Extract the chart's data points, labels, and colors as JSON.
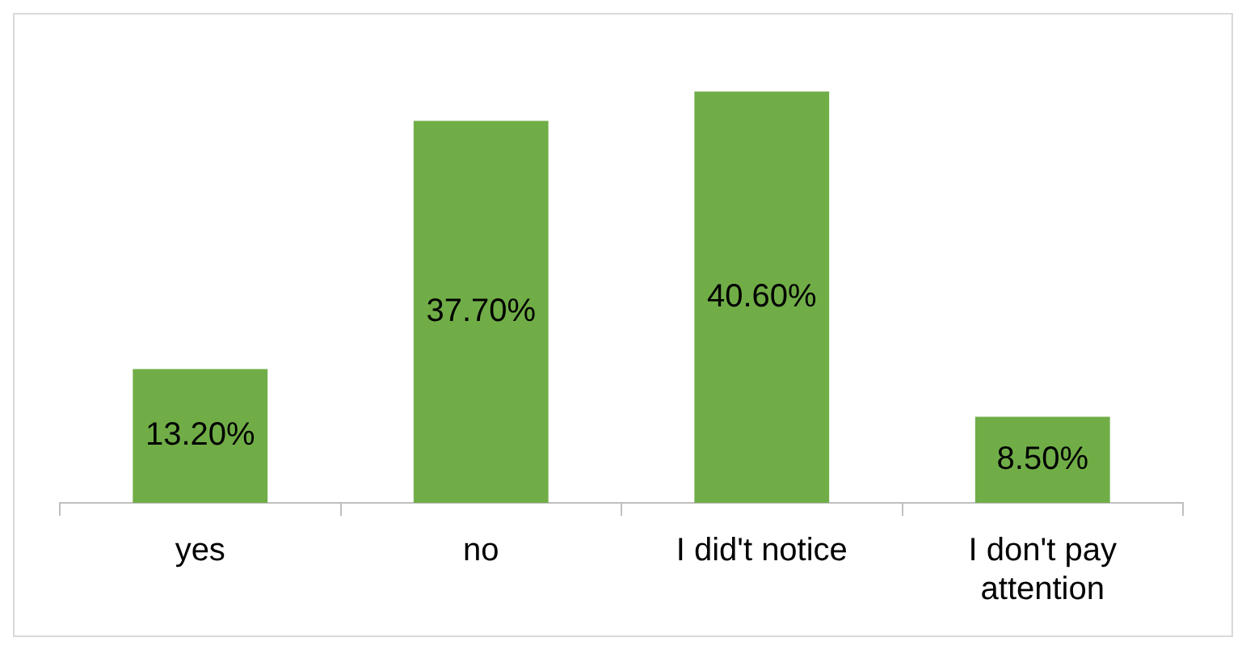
{
  "chart_data": {
    "type": "bar",
    "categories": [
      "yes",
      "no",
      "I did't notice",
      "I don't pay attention"
    ],
    "values": [
      13.2,
      37.7,
      40.6,
      8.5
    ],
    "color": "#70ad47",
    "value_labels": [
      "13.20%",
      "37.70%",
      "40.60%",
      "8.50%"
    ],
    "grid": false,
    "legend": false
  }
}
